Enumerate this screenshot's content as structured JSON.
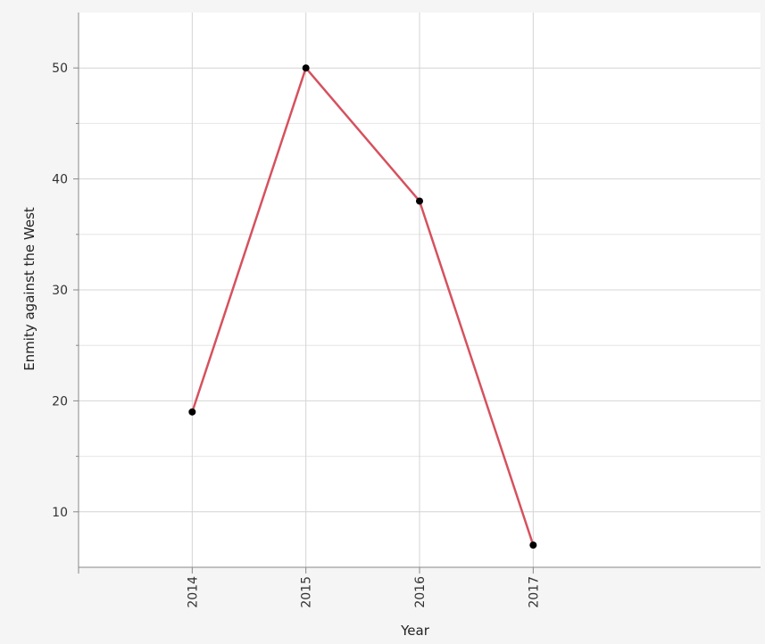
{
  "chart_data": {
    "type": "line",
    "title": "",
    "xlabel": "Year",
    "ylabel": "Enmity against the West",
    "categories": [
      "2014",
      "2015",
      "2016",
      "2017"
    ],
    "series": [
      {
        "values": [
          19,
          50,
          38,
          7
        ],
        "color": "#d6515e",
        "marker_color": "#000000"
      }
    ],
    "xlim": [
      2013,
      2019
    ],
    "ylim": [
      5,
      55
    ],
    "y_ticks": [
      10,
      20,
      30,
      40,
      50
    ],
    "y_minor_gridlines": [
      15,
      25,
      35,
      45
    ],
    "grid": true,
    "legend": "none",
    "colors": {
      "background": "#f5f5f5",
      "plot_background": "#ffffff",
      "gridline": "#d4d4d4",
      "minor_gridline": "#e6e6e6",
      "axis": "#888888"
    }
  }
}
